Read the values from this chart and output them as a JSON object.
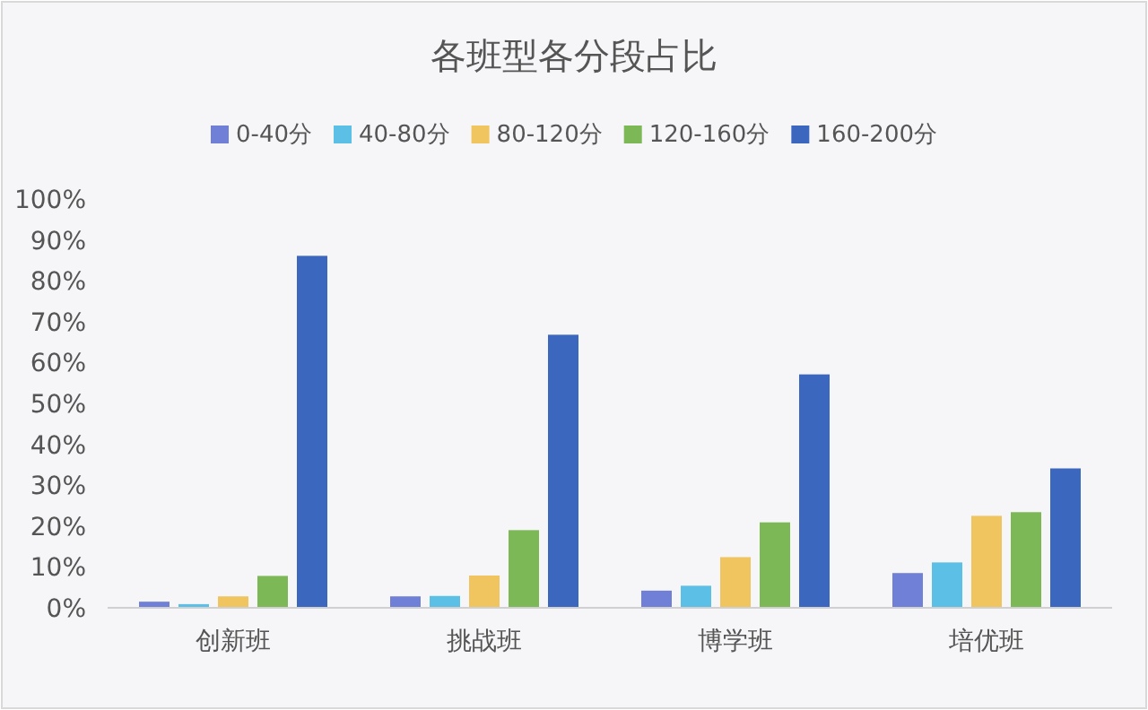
{
  "chart_data": {
    "type": "bar",
    "title": "各班型各分段占比",
    "categories": [
      "创新班",
      "挑战班",
      "博学班",
      "培优班"
    ],
    "series": [
      {
        "name": "0-40分",
        "color": "#6f80d6",
        "values": [
          1.5,
          2.8,
          4.2,
          8.5
        ]
      },
      {
        "name": "40-80分",
        "color": "#5bbfe6",
        "values": [
          0.9,
          2.9,
          5.4,
          11.1
        ]
      },
      {
        "name": "80-120分",
        "color": "#f0c45e",
        "values": [
          2.8,
          7.9,
          12.4,
          22.5
        ]
      },
      {
        "name": "120-160分",
        "color": "#7cb856",
        "values": [
          7.8,
          19.0,
          20.9,
          23.4
        ]
      },
      {
        "name": "160-200分",
        "color": "#3b67bf",
        "values": [
          86.1,
          66.8,
          57.1,
          34.1
        ]
      }
    ],
    "ylim": [
      0,
      100
    ],
    "yticks": [
      {
        "value": 0,
        "label": "0%"
      },
      {
        "value": 10,
        "label": "10%"
      },
      {
        "value": 20,
        "label": "20%"
      },
      {
        "value": 30,
        "label": "30%"
      },
      {
        "value": 40,
        "label": "40%"
      },
      {
        "value": 50,
        "label": "50%"
      },
      {
        "value": 60,
        "label": "60%"
      },
      {
        "value": 70,
        "label": "70%"
      },
      {
        "value": 80,
        "label": "80%"
      },
      {
        "value": 90,
        "label": "90%"
      },
      {
        "value": 100,
        "label": "100%"
      }
    ],
    "legend": "top"
  }
}
